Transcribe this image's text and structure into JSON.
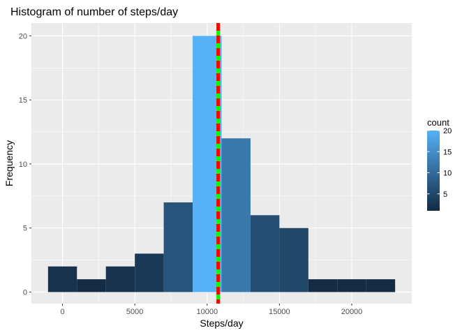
{
  "chart_data": {
    "type": "bar",
    "title": "Histogram of number of steps/day",
    "xlabel": "Steps/day",
    "ylabel": "Frequency",
    "xlim": [
      -2150,
      24150
    ],
    "ylim": [
      -0.9,
      21.0
    ],
    "x_ticks": [
      0,
      5000,
      10000,
      15000,
      20000
    ],
    "x_tick_labels": [
      "0",
      "5000",
      "10000",
      "15000",
      "20000"
    ],
    "y_ticks": [
      0,
      5,
      10,
      15,
      20
    ],
    "y_tick_labels": [
      "0",
      "5",
      "10",
      "15",
      "20"
    ],
    "bins": [
      {
        "x0": -1000,
        "x1": 1000,
        "count": 2
      },
      {
        "x0": 1000,
        "x1": 3000,
        "count": 1
      },
      {
        "x0": 3000,
        "x1": 5000,
        "count": 2
      },
      {
        "x0": 5000,
        "x1": 7000,
        "count": 3
      },
      {
        "x0": 7000,
        "x1": 9000,
        "count": 7
      },
      {
        "x0": 9000,
        "x1": 11000,
        "count": 20
      },
      {
        "x0": 11000,
        "x1": 13000,
        "count": 12
      },
      {
        "x0": 13000,
        "x1": 15000,
        "count": 6
      },
      {
        "x0": 15000,
        "x1": 17000,
        "count": 5
      },
      {
        "x0": 17000,
        "x1": 19000,
        "count": 1
      },
      {
        "x0": 19000,
        "x1": 21000,
        "count": 1
      },
      {
        "x0": 21000,
        "x1": 23000,
        "count": 1
      }
    ],
    "vlines": [
      {
        "x": 10766,
        "color": "#00ff00",
        "style": "solid"
      },
      {
        "x": 10766,
        "color": "#ff0000",
        "style": "dashed"
      }
    ],
    "color_scale": {
      "low": "#132b43",
      "high": "#56b1f7",
      "min": 1,
      "max": 20
    },
    "legend": {
      "title": "count",
      "breaks": [
        5,
        10,
        15,
        20
      ],
      "labels": [
        "5",
        "10",
        "15",
        "20"
      ],
      "position": "right"
    },
    "grid": true,
    "panel_background": "#ebebeb"
  }
}
